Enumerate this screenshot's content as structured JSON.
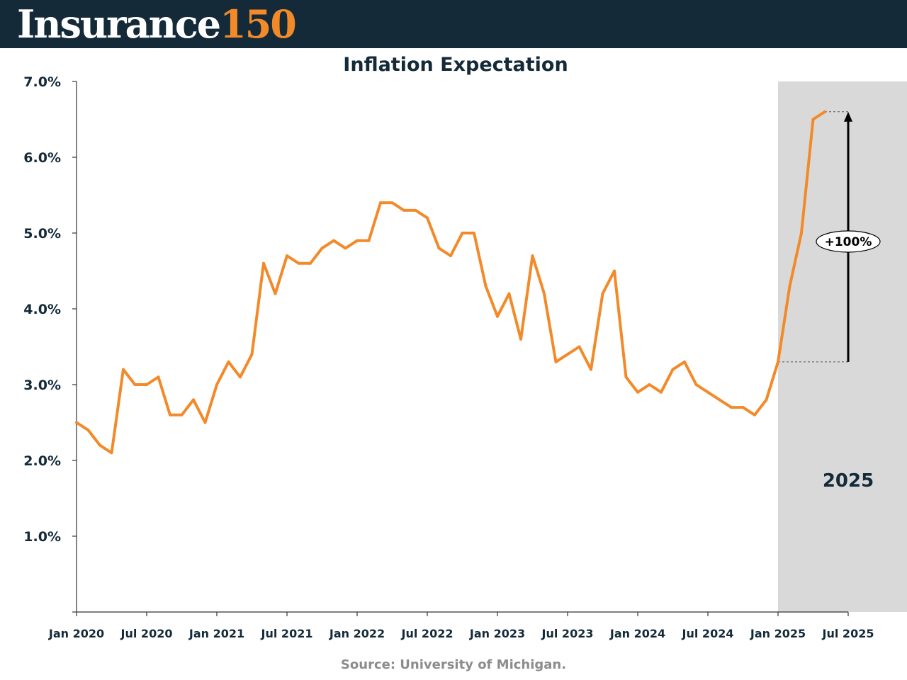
{
  "brand": {
    "name": "Insurance",
    "number": "150"
  },
  "chart_data": {
    "type": "line",
    "title": "Inflation Expectation",
    "xlabel": "",
    "ylabel": "",
    "ylim": [
      0,
      7
    ],
    "y_ticks": [
      {
        "value": 1,
        "label": "1.0%"
      },
      {
        "value": 2,
        "label": "2.0%"
      },
      {
        "value": 3,
        "label": "3.0%"
      },
      {
        "value": 4,
        "label": "4.0%"
      },
      {
        "value": 5,
        "label": "5.0%"
      },
      {
        "value": 6,
        "label": "6.0%"
      },
      {
        "value": 7,
        "label": "7.0%"
      }
    ],
    "x_ticks": [
      {
        "value": "2020-01",
        "label": "Jan 2020"
      },
      {
        "value": "2020-07",
        "label": "Jul 2020"
      },
      {
        "value": "2021-01",
        "label": "Jan 2021"
      },
      {
        "value": "2021-07",
        "label": "Jul 2021"
      },
      {
        "value": "2022-01",
        "label": "Jan 2022"
      },
      {
        "value": "2022-07",
        "label": "Jul 2022"
      },
      {
        "value": "2023-01",
        "label": "Jan 2023"
      },
      {
        "value": "2023-07",
        "label": "Jul 2023"
      },
      {
        "value": "2024-01",
        "label": "Jan 2024"
      },
      {
        "value": "2024-07",
        "label": "Jul 2024"
      },
      {
        "value": "2025-01",
        "label": "Jan 2025"
      },
      {
        "value": "2025-07",
        "label": "Jul 2025"
      }
    ],
    "x_range": [
      "2020-01",
      "2025-07"
    ],
    "grid": false,
    "line_color": "#f28a2a",
    "highlight_color": "#d9d9d9",
    "series": [
      {
        "x": [
          "2020-01",
          "2020-02",
          "2020-03",
          "2020-04",
          "2020-05",
          "2020-06",
          "2020-07",
          "2020-08",
          "2020-09",
          "2020-10",
          "2020-11",
          "2020-12",
          "2021-01",
          "2021-02",
          "2021-03",
          "2021-04",
          "2021-05",
          "2021-06",
          "2021-07",
          "2021-08",
          "2021-09",
          "2021-10",
          "2021-11",
          "2021-12",
          "2022-01",
          "2022-02",
          "2022-03",
          "2022-04",
          "2022-05",
          "2022-06",
          "2022-07",
          "2022-08",
          "2022-09",
          "2022-10",
          "2022-11",
          "2022-12",
          "2023-01",
          "2023-02",
          "2023-03",
          "2023-04",
          "2023-05",
          "2023-06",
          "2023-07",
          "2023-08",
          "2023-09",
          "2023-10",
          "2023-11",
          "2023-12",
          "2024-01",
          "2024-02",
          "2024-03",
          "2024-04",
          "2024-05",
          "2024-06",
          "2024-07",
          "2024-08",
          "2024-09",
          "2024-10",
          "2024-11",
          "2024-12",
          "2025-01",
          "2025-02",
          "2025-03",
          "2025-04",
          "2025-05"
        ],
        "values": [
          2.5,
          2.4,
          2.2,
          2.1,
          3.2,
          3.0,
          3.0,
          3.1,
          2.6,
          2.6,
          2.8,
          2.5,
          3.0,
          3.3,
          3.1,
          3.4,
          4.6,
          4.2,
          4.7,
          4.6,
          4.6,
          4.8,
          4.9,
          4.8,
          4.9,
          4.9,
          5.4,
          5.4,
          5.3,
          5.3,
          5.2,
          4.8,
          4.7,
          5.0,
          5.0,
          4.3,
          3.9,
          4.2,
          3.6,
          4.7,
          4.2,
          3.3,
          3.4,
          3.5,
          3.2,
          4.2,
          4.5,
          3.1,
          2.9,
          3.0,
          2.9,
          3.2,
          3.3,
          3.0,
          2.9,
          2.8,
          2.7,
          2.7,
          2.6,
          2.8,
          3.3,
          4.3,
          5.0,
          6.5,
          6.6
        ]
      }
    ],
    "highlight": {
      "from": "2025-01",
      "label": "2025"
    },
    "annotation": {
      "label": "+100%",
      "from_value": 3.3,
      "to_value": 6.6,
      "at_x": "2025-07"
    }
  },
  "source": "Source: University of Michigan."
}
